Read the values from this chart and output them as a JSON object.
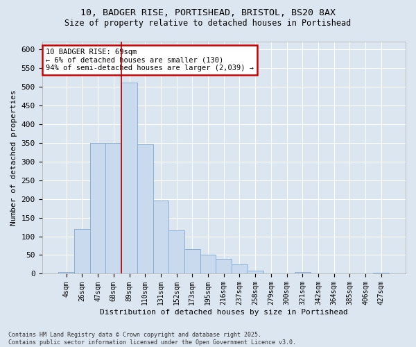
{
  "title_line1": "10, BADGER RISE, PORTISHEAD, BRISTOL, BS20 8AX",
  "title_line2": "Size of property relative to detached houses in Portishead",
  "xlabel": "Distribution of detached houses by size in Portishead",
  "ylabel": "Number of detached properties",
  "footer_line1": "Contains HM Land Registry data © Crown copyright and database right 2025.",
  "footer_line2": "Contains public sector information licensed under the Open Government Licence v3.0.",
  "categories": [
    "4sqm",
    "26sqm",
    "47sqm",
    "68sqm",
    "89sqm",
    "110sqm",
    "131sqm",
    "152sqm",
    "173sqm",
    "195sqm",
    "216sqm",
    "237sqm",
    "258sqm",
    "279sqm",
    "300sqm",
    "321sqm",
    "342sqm",
    "364sqm",
    "385sqm",
    "406sqm",
    "427sqm"
  ],
  "values": [
    5,
    120,
    350,
    350,
    510,
    345,
    195,
    115,
    65,
    50,
    40,
    25,
    8,
    0,
    0,
    5,
    0,
    0,
    0,
    0,
    2
  ],
  "bar_color": "#c9d9ee",
  "bar_edge_color": "#8ab0d4",
  "bg_color": "#dce6f0",
  "plot_bg_color": "#dce6f0",
  "grid_color": "#ffffff",
  "vline_x": 3.5,
  "vline_color": "#aa0000",
  "annotation_text": "10 BADGER RISE: 69sqm\n← 6% of detached houses are smaller (130)\n94% of semi-detached houses are larger (2,039) →",
  "annotation_box_facecolor": "#ffffff",
  "annotation_box_edge": "#cc0000",
  "ylim": [
    0,
    620
  ],
  "yticks": [
    0,
    50,
    100,
    150,
    200,
    250,
    300,
    350,
    400,
    450,
    500,
    550,
    600
  ]
}
